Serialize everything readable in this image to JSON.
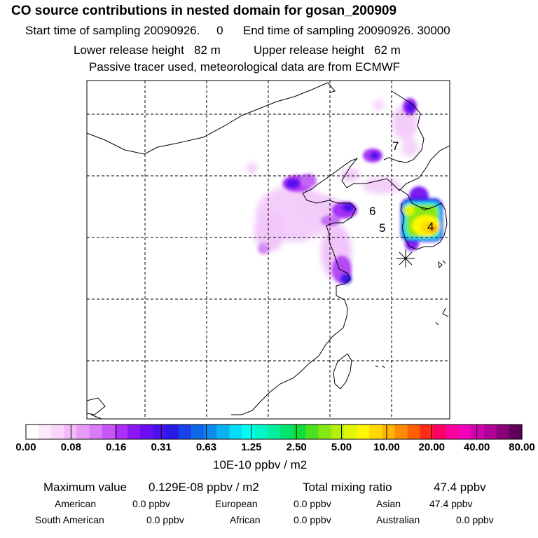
{
  "header": {
    "title": "CO  source contributions in nested domain for gosan_200909",
    "sampling_line": "Start time of sampling 20090926.     0      End time of sampling 20090926. 30000",
    "release_line": "Lower release height   82 m          Upper release height   62 m",
    "tracer_line": "Passive tracer used, meteorological data are from ECMWF"
  },
  "map": {
    "labels": [
      {
        "name": "region-label-7",
        "text": "7"
      },
      {
        "name": "region-label-6",
        "text": "6"
      },
      {
        "name": "region-label-5",
        "text": "5"
      },
      {
        "name": "region-label-4",
        "text": "4"
      }
    ],
    "station_marker": "star-icon"
  },
  "colorbar": {
    "tick_labels": [
      "0.00",
      "0.08",
      "0.16",
      "0.31",
      "0.63",
      "1.25",
      "2.50",
      "5.00",
      "10.00",
      "20.00",
      "40.00",
      "80.00"
    ],
    "colors": [
      "#ffffff",
      "#fde9fd",
      "#f9d4fb",
      "#f2b8f8",
      "#e69cf6",
      "#d97bf5",
      "#c656f5",
      "#ad2ef6",
      "#8b17f4",
      "#6b0ff2",
      "#4b10ee",
      "#2a1ae8",
      "#1a43e7",
      "#1068e8",
      "#0c8ced",
      "#08b2f1",
      "#05dcf6",
      "#00ffee",
      "#00f8c8",
      "#00ef9e",
      "#00e46e",
      "#10dc3a",
      "#4ce11e",
      "#85e812",
      "#b5ef0a",
      "#e0f605",
      "#fff700",
      "#ffd800",
      "#ffb400",
      "#ff8b00",
      "#ff5f00",
      "#ff2a1a",
      "#ff0064",
      "#ff00a0",
      "#f000b8",
      "#d200b0",
      "#b10098",
      "#8a0078",
      "#600058"
    ],
    "units": "10E-10 ppbv / m2"
  },
  "summary": {
    "max_label": "Maximum value",
    "max_value": "0.129E-08 ppbv / m2",
    "total_label": "Total mixing ratio",
    "total_value": "47.4 ppbv",
    "american_label": "American",
    "american_value": "0.0 ppbv",
    "european_label": "European",
    "european_value": "0.0 ppbv",
    "asian_label": "Asian",
    "asian_value": "47.4 ppbv",
    "south_american_label": "South American",
    "south_american_value": "0.0 ppbv",
    "african_label": "African",
    "african_value": "0.0 ppbv",
    "australian_label": "Australian",
    "australian_value": "0.0 ppbv"
  }
}
